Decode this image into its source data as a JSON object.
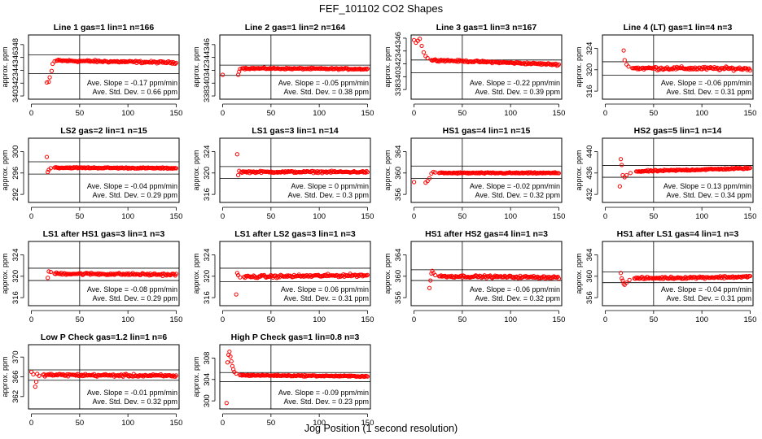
{
  "figure": {
    "title": "FEF_101102  CO2 Shapes",
    "xlabel": "Jog Position (1 second resolution)"
  },
  "chart_data": [
    {
      "type": "scatter",
      "title": "Line 1 gas=1 lin=1 n=166",
      "ylabel": "approx. ppm",
      "xlim": [
        -3,
        153
      ],
      "ylim": [
        339.5,
        349.5
      ],
      "xticks": [
        0,
        50,
        100,
        150
      ],
      "yticks": [
        340,
        342,
        344,
        346,
        348
      ],
      "ref_hlines": [
        343.5,
        346.4
      ],
      "ref_vline": 50,
      "slope_note": "Ave. Slope = -0.17 ppm/min",
      "std_note": "Ave. Std. Dev. = 0.66 ppm",
      "series": [
        {
          "pattern": "step",
          "start": 16,
          "points": [
            [
              16,
              342.1
            ],
            [
              18,
              342.2
            ],
            [
              19,
              342.9
            ],
            [
              21,
              343.9
            ],
            [
              22,
              345.0
            ],
            [
              24,
              345.4
            ],
            [
              26,
              345.5
            ]
          ],
          "level_start": 345.5,
          "level_end": 345.2,
          "noise": 0.12,
          "color": "#ff0000"
        }
      ]
    },
    {
      "type": "scatter",
      "title": "Line 2 gas=1 lin=2 n=164",
      "ylabel": "approx. ppm",
      "xlim": [
        -3,
        153
      ],
      "ylim": [
        337.5,
        347.5
      ],
      "xticks": [
        0,
        50,
        100,
        150
      ],
      "yticks": [
        338,
        340,
        342,
        344,
        346
      ],
      "ref_hlines": [
        342.8,
        341.2
      ],
      "ref_vline": 50,
      "slope_note": "Ave. Slope = -0.05 ppm/min",
      "std_note": "Ave. Std. Dev. = 0.38 ppm",
      "series": [
        {
          "pattern": "step",
          "start": 0,
          "points": [
            [
              0,
              341.3
            ],
            [
              16,
              341.3
            ],
            [
              17,
              341.8
            ],
            [
              18,
              342.2
            ],
            [
              20,
              342.3
            ]
          ],
          "level_start": 342.3,
          "level_end": 342.2,
          "noise": 0.08,
          "color": "#ff0000"
        }
      ]
    },
    {
      "type": "scatter",
      "title": "Line 3 gas=1 lin=3 n=167",
      "ylabel": "approx. ppm",
      "xlim": [
        -3,
        153
      ],
      "ylim": [
        336.5,
        346.5
      ],
      "xticks": [
        0,
        50,
        100,
        150
      ],
      "yticks": [
        338,
        340,
        342,
        344,
        346
      ],
      "ref_hlines": [
        342.6,
        340.6
      ],
      "ref_vline": 50,
      "slope_note": "Ave. Slope = -0.22 ppm/min",
      "std_note": "Ave. Std. Dev. = 0.39 ppm",
      "series": [
        {
          "pattern": "step",
          "start": 0,
          "points": [
            [
              0,
              345.7
            ],
            [
              2,
              345.3
            ],
            [
              4,
              345.6
            ],
            [
              6,
              345.9
            ],
            [
              8,
              344.8
            ],
            [
              10,
              343.8
            ],
            [
              12,
              343.2
            ],
            [
              14,
              342.9
            ],
            [
              18,
              342.6
            ]
          ],
          "level_start": 342.6,
          "level_end": 341.9,
          "noise": 0.1,
          "color": "#ff0000"
        }
      ]
    },
    {
      "type": "scatter",
      "title": "Line 4 (LT) gas=1 lin=4 n=3",
      "ylabel": "approx. ppm",
      "xlim": [
        -3,
        153
      ],
      "ylim": [
        314.5,
        326.5
      ],
      "xticks": [
        0,
        50,
        100,
        150
      ],
      "yticks": [
        316,
        320,
        324
      ],
      "ref_hlines": [
        321.5,
        319
      ],
      "ref_vline": 50,
      "slope_note": "Ave. Slope = -0.06 ppm/min",
      "std_note": "Ave. Std. Dev. = 0.31 ppm",
      "series": [
        {
          "pattern": "step",
          "start": 19,
          "points": [
            [
              19,
              323.6
            ],
            [
              20,
              321.8
            ],
            [
              22,
              321.0
            ],
            [
              24,
              320.6
            ],
            [
              28,
              320.3
            ]
          ],
          "level_start": 320.3,
          "level_end": 320.2,
          "noise": 0.22,
          "color": "#ff0000"
        }
      ]
    },
    {
      "type": "scatter",
      "title": "LS2 gas=2 lin=1 n=15",
      "ylabel": "approx. ppm",
      "xlim": [
        -3,
        153
      ],
      "ylim": [
        290.5,
        302.5
      ],
      "xticks": [
        0,
        50,
        100,
        150
      ],
      "yticks": [
        292,
        296,
        300
      ],
      "ref_hlines": [
        298.1,
        295.8
      ],
      "ref_vline": 50,
      "slope_note": "Ave. Slope = -0.04 ppm/min",
      "std_note": "Ave. Std. Dev. = 0.29 ppm",
      "series": [
        {
          "pattern": "step",
          "start": 16,
          "points": [
            [
              16,
              299.0
            ],
            [
              17,
              296.2
            ],
            [
              18,
              296.6
            ],
            [
              20,
              296.9
            ],
            [
              24,
              297.0
            ]
          ],
          "level_start": 297.0,
          "level_end": 296.9,
          "noise": 0.08,
          "color": "#ff0000"
        }
      ]
    },
    {
      "type": "scatter",
      "title": "LS1 gas=3 lin=1 n=14",
      "ylabel": "approx. ppm",
      "xlim": [
        -3,
        153
      ],
      "ylim": [
        314.5,
        326.5
      ],
      "xticks": [
        0,
        50,
        100,
        150
      ],
      "yticks": [
        316,
        320,
        324
      ],
      "ref_hlines": [
        321.2,
        319.0
      ],
      "ref_vline": 50,
      "slope_note": "Ave. Slope = 0 ppm/min",
      "std_note": "Ave. Std. Dev. = 0.3 ppm",
      "series": [
        {
          "pattern": "step",
          "start": 15,
          "points": [
            [
              15,
              323.5
            ],
            [
              16,
              319.6
            ],
            [
              17,
              320.4
            ],
            [
              19,
              320.2
            ]
          ],
          "level_start": 320.2,
          "level_end": 320.2,
          "noise": 0.12,
          "color": "#ff0000"
        }
      ]
    },
    {
      "type": "scatter",
      "title": "HS1 gas=4 lin=1 n=15",
      "ylabel": "approx. ppm",
      "xlim": [
        -3,
        153
      ],
      "ylim": [
        354.5,
        366.5
      ],
      "xticks": [
        0,
        50,
        100,
        150
      ],
      "yticks": [
        356,
        360,
        364
      ],
      "ref_hlines": [
        361.3,
        359.0
      ],
      "ref_vline": 50,
      "slope_note": "Ave. Slope = -0.02 ppm/min",
      "std_note": "Ave. Std. Dev. = 0.32 ppm",
      "series": [
        {
          "pattern": "step",
          "start": 0,
          "points": [
            [
              0,
              358.3
            ],
            [
              12,
              358.2
            ],
            [
              14,
              358.5
            ],
            [
              16,
              359.0
            ],
            [
              18,
              359.9
            ],
            [
              20,
              360.2
            ],
            [
              22,
              360.1
            ],
            [
              26,
              360.0
            ]
          ],
          "level_start": 360.0,
          "level_end": 360.0,
          "noise": 0.08,
          "color": "#ff0000"
        }
      ]
    },
    {
      "type": "scatter",
      "title": "HS2 gas=5 lin=1 n=14",
      "ylabel": "approx. ppm",
      "xlim": [
        -3,
        153
      ],
      "ylim": [
        430.5,
        442.5
      ],
      "xticks": [
        0,
        50,
        100,
        150
      ],
      "yticks": [
        432,
        436,
        440
      ],
      "ref_hlines": [
        437.4,
        435.2
      ],
      "ref_vline": 50,
      "slope_note": "Ave. Slope = 0.13 ppm/min",
      "std_note": "Ave. Std. Dev. = 0.34 ppm",
      "series": [
        {
          "pattern": "step",
          "start": 15,
          "points": [
            [
              15,
              433.5
            ],
            [
              16,
              438.6
            ],
            [
              17,
              437.5
            ],
            [
              18,
              435.6
            ],
            [
              20,
              435.2
            ],
            [
              22,
              435.6
            ],
            [
              26,
              436.0
            ],
            [
              32,
              436.3
            ]
          ],
          "level_start": 436.3,
          "level_end": 436.9,
          "noise": 0.1,
          "color": "#ff0000"
        }
      ]
    },
    {
      "type": "scatter",
      "title": "LS1 after HS1 gas=3 lin=1 n=3",
      "ylabel": "approx. ppm",
      "xlim": [
        -3,
        153
      ],
      "ylim": [
        314.5,
        326.5
      ],
      "xticks": [
        0,
        50,
        100,
        150
      ],
      "yticks": [
        316,
        320,
        324
      ],
      "ref_hlines": [
        321.5,
        319.2
      ],
      "ref_vline": 50,
      "slope_note": "Ave. Slope = -0.08 ppm/min",
      "std_note": "Ave. Std. Dev. = 0.29 ppm",
      "series": [
        {
          "pattern": "step",
          "start": 17,
          "points": [
            [
              17,
              319.7
            ],
            [
              18,
              320.9
            ],
            [
              20,
              320.8
            ],
            [
              24,
              320.5
            ]
          ],
          "level_start": 320.5,
          "level_end": 320.3,
          "noise": 0.15,
          "color": "#ff0000"
        }
      ]
    },
    {
      "type": "scatter",
      "title": "LS1 after LS2 gas=3 lin=1 n=3",
      "ylabel": "approx. ppm",
      "xlim": [
        -3,
        153
      ],
      "ylim": [
        314.5,
        326.5
      ],
      "xticks": [
        0,
        50,
        100,
        150
      ],
      "yticks": [
        316,
        320,
        324
      ],
      "ref_hlines": [
        321.5,
        319.0
      ],
      "ref_vline": 50,
      "slope_note": "Ave. Slope = 0.06 ppm/min",
      "std_note": "Ave. Std. Dev. = 0.31 ppm",
      "series": [
        {
          "pattern": "step",
          "start": 14,
          "points": [
            [
              14,
              316.6
            ],
            [
              15,
              320.6
            ],
            [
              16,
              320.2
            ],
            [
              18,
              319.8
            ],
            [
              22,
              319.9
            ]
          ],
          "level_start": 319.9,
          "level_end": 320.2,
          "noise": 0.18,
          "color": "#ff0000"
        }
      ]
    },
    {
      "type": "scatter",
      "title": "HS1 after HS2 gas=4 lin=1 n=3",
      "ylabel": "approx. ppm",
      "xlim": [
        -3,
        153
      ],
      "ylim": [
        354.5,
        366.5
      ],
      "xticks": [
        0,
        50,
        100,
        150
      ],
      "yticks": [
        356,
        360,
        364
      ],
      "ref_hlines": [
        361.2,
        359.2
      ],
      "ref_vline": 50,
      "slope_note": "Ave. Slope = -0.06 ppm/min",
      "std_note": "Ave. Std. Dev. = 0.32 ppm",
      "series": [
        {
          "pattern": "step",
          "start": 16,
          "points": [
            [
              16,
              357.8
            ],
            [
              17,
              359.2
            ],
            [
              18,
              360.5
            ],
            [
              19,
              361.0
            ],
            [
              20,
              360.6
            ],
            [
              22,
              360.2
            ],
            [
              26,
              360.0
            ]
          ],
          "level_start": 360.0,
          "level_end": 359.8,
          "noise": 0.15,
          "color": "#ff0000"
        }
      ]
    },
    {
      "type": "scatter",
      "title": "HS1 after LS1 gas=4 lin=1 n=3",
      "ylabel": "approx. ppm",
      "xlim": [
        -3,
        153
      ],
      "ylim": [
        354.5,
        366.5
      ],
      "xticks": [
        0,
        50,
        100,
        150
      ],
      "yticks": [
        356,
        360,
        364
      ],
      "ref_hlines": [
        360.8,
        358.8
      ],
      "ref_vline": 50,
      "slope_note": "Ave. Slope = -0.04 ppm/min",
      "std_note": "Ave. Std. Dev. = 0.31 ppm",
      "series": [
        {
          "pattern": "step",
          "start": 16,
          "points": [
            [
              16,
              360.6
            ],
            [
              17,
              359.6
            ],
            [
              18,
              359.2
            ],
            [
              19,
              358.6
            ],
            [
              20,
              358.4
            ],
            [
              22,
              358.8
            ],
            [
              25,
              359.3
            ],
            [
              30,
              359.6
            ]
          ],
          "level_start": 359.6,
          "level_end": 359.9,
          "noise": 0.15,
          "color": "#ff0000"
        }
      ]
    },
    {
      "type": "scatter",
      "title": "Low P Check gas=1.2 lin=1 n=6",
      "ylabel": "approx. ppm",
      "xlim": [
        -3,
        153
      ],
      "ylim": [
        359.5,
        372.5
      ],
      "xticks": [
        0,
        50,
        100,
        150
      ],
      "yticks": [
        362,
        366,
        370
      ],
      "ref_hlines": [
        367.4,
        365.3
      ],
      "ref_vline": 50,
      "slope_note": "Ave. Slope = -0.01 ppm/min",
      "std_note": "Ave. Std. Dev. = 0.32 ppm",
      "series": [
        {
          "pattern": "step",
          "start": 0,
          "points": [
            [
              0,
              367.0
            ],
            [
              2,
              366.5
            ],
            [
              4,
              364.0
            ],
            [
              5,
              365.0
            ],
            [
              6,
              366.6
            ],
            [
              8,
              366.2
            ],
            [
              12,
              366.4
            ]
          ],
          "level_start": 366.4,
          "level_end": 366.2,
          "noise": 0.18,
          "color": "#ff0000"
        }
      ]
    },
    {
      "type": "scatter",
      "title": "High P Check gas=1 lin=0.8 n=3",
      "ylabel": "approx. ppm",
      "xlim": [
        -3,
        153
      ],
      "ylim": [
        298.5,
        310.5
      ],
      "xticks": [
        0,
        50,
        100,
        150
      ],
      "yticks": [
        300,
        304,
        308
      ],
      "ref_hlines": [
        305.3,
        303.6
      ],
      "ref_vline": 50,
      "slope_note": "Ave. Slope = -0.09 ppm/min",
      "std_note": "Ave. Std. Dev. = 0.23 ppm",
      "series": [
        {
          "pattern": "step",
          "start": 4,
          "points": [
            [
              4,
              299.6
            ],
            [
              5,
              307.2
            ],
            [
              6,
              308.6
            ],
            [
              7,
              309.2
            ],
            [
              8,
              308.3
            ],
            [
              9,
              307.4
            ],
            [
              10,
              306.5
            ],
            [
              11,
              305.9
            ],
            [
              12,
              305.4
            ],
            [
              14,
              305.1
            ],
            [
              18,
              304.8
            ]
          ],
          "level_start": 304.8,
          "level_end": 304.6,
          "noise": 0.08,
          "color": "#ff0000"
        }
      ]
    }
  ]
}
